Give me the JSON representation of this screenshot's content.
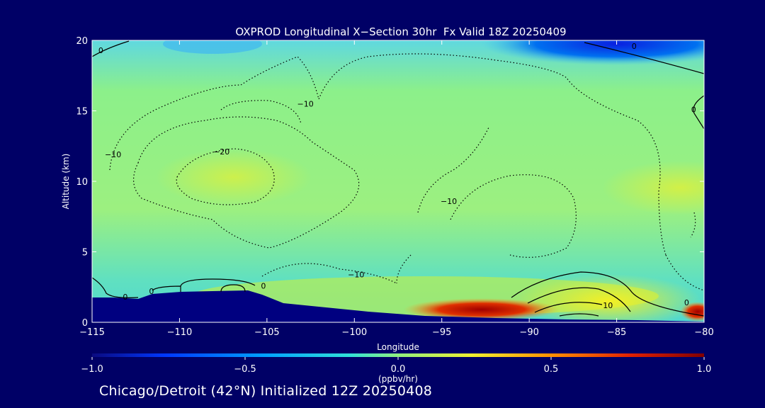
{
  "chart_data": {
    "type": "heatmap",
    "title": "OXPROD Longitudinal X−Section 30hr  Fx Valid 18Z 20250409",
    "xlabel": "Longitude",
    "ylabel": "Altitude (km)",
    "xlim": [
      -115,
      -80
    ],
    "ylim": [
      0,
      20
    ],
    "x_ticks": [
      -115,
      -110,
      -105,
      -100,
      -95,
      -90,
      -85,
      -80
    ],
    "x_tick_labels": [
      "−115",
      "−110",
      "−105",
      "−100",
      "−95",
      "−90",
      "−85",
      "−80"
    ],
    "y_ticks": [
      0,
      5,
      10,
      15,
      20
    ],
    "y_tick_labels": [
      "0",
      "5",
      "10",
      "15",
      "20"
    ],
    "colorbar": {
      "label": "(ppbv/hr)",
      "range": [
        -1.0,
        1.0
      ],
      "ticks": [
        -1.0,
        -0.5,
        0.0,
        0.5,
        1.0
      ],
      "tick_labels": [
        "−1.0",
        "−0.5",
        "0.0",
        "0.5",
        "1.0"
      ],
      "colors": [
        "#0a0a80",
        "#0038ff",
        "#00a0ff",
        "#30e0d8",
        "#90f080",
        "#f0f030",
        "#ff9000",
        "#e02000",
        "#800000"
      ]
    },
    "contour_labels": [
      {
        "text": "0",
        "lon": -114.5,
        "alt": 19.3
      },
      {
        "text": "−10",
        "lon": -102.8,
        "alt": 15.5
      },
      {
        "text": "−20",
        "lon": -107.6,
        "alt": 12.1
      },
      {
        "text": "−10",
        "lon": -113.8,
        "alt": 11.9
      },
      {
        "text": "−10",
        "lon": -94.6,
        "alt": 8.6
      },
      {
        "text": "−10",
        "lon": -99.9,
        "alt": 3.4
      },
      {
        "text": "0",
        "lon": -113.1,
        "alt": 1.8
      },
      {
        "text": "0",
        "lon": -111.6,
        "alt": 2.2
      },
      {
        "text": "0",
        "lon": -105.2,
        "alt": 2.6
      },
      {
        "text": "0",
        "lon": -84.0,
        "alt": 19.6
      },
      {
        "text": "0",
        "lon": -80.6,
        "alt": 15.1
      },
      {
        "text": "10",
        "lon": -85.5,
        "alt": 1.2
      },
      {
        "text": "0",
        "lon": -81.0,
        "alt": 1.4
      }
    ]
  },
  "footer": "Chicago/Detroit (42°N) Initialized 12Z 20250408"
}
